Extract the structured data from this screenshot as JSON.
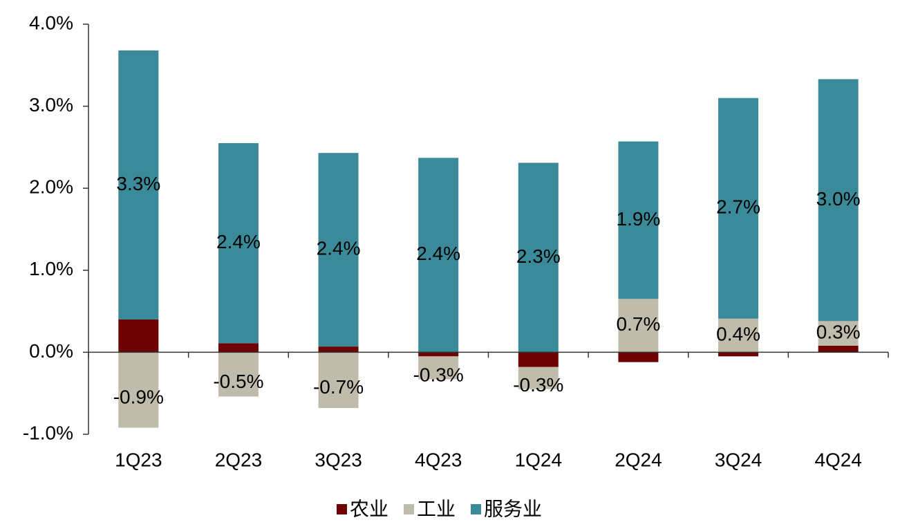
{
  "chart_data": {
    "type": "stacked_bar",
    "categories": [
      "1Q23",
      "2Q23",
      "3Q23",
      "4Q23",
      "1Q24",
      "2Q24",
      "3Q24",
      "4Q24"
    ],
    "series": [
      {
        "name": "农业",
        "color": "#6e0303",
        "values": [
          0.4,
          0.11,
          0.07,
          -0.05,
          -0.18,
          -0.12,
          -0.05,
          0.08
        ]
      },
      {
        "name": "工业",
        "color": "#bfbcab",
        "values": [
          -0.92,
          -0.54,
          -0.68,
          -0.28,
          -0.27,
          0.65,
          0.41,
          0.3
        ],
        "value_labels": [
          "-0.9%",
          "-0.5%",
          "-0.7%",
          "-0.3%",
          "-0.3%",
          "0.7%",
          "0.4%",
          "0.3%"
        ]
      },
      {
        "name": "服务业",
        "color": "#3b8a9a",
        "values": [
          3.28,
          2.44,
          2.36,
          2.37,
          2.31,
          1.92,
          2.69,
          2.95
        ],
        "value_labels": [
          "3.3%",
          "2.4%",
          "2.4%",
          "2.4%",
          "2.3%",
          "1.9%",
          "2.7%",
          "3.0%"
        ]
      }
    ],
    "ylim": [
      -1,
      4
    ],
    "yticks": [
      {
        "value": -1,
        "label": "-1.0%"
      },
      {
        "value": 0,
        "label": "0.0%"
      },
      {
        "value": 1,
        "label": "1.0%"
      },
      {
        "value": 2,
        "label": "2.0%"
      },
      {
        "value": 3,
        "label": "3.0%"
      },
      {
        "value": 4,
        "label": "4.0%"
      }
    ],
    "grid": false,
    "legend": "bottom"
  }
}
